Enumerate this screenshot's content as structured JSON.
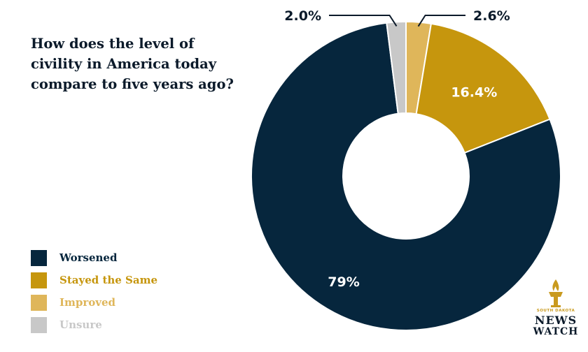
{
  "chart_data": {
    "type": "pie",
    "title_lines": [
      "How does the level of",
      "civility in America today",
      "compare to five years ago?"
    ],
    "slices": [
      {
        "label": "Improved",
        "value": 2.6,
        "display": "2.6%",
        "color": "#dfb65a"
      },
      {
        "label": "Stayed the Same",
        "value": 16.4,
        "display": "16.4%",
        "color": "#c6960d"
      },
      {
        "label": "Worsened",
        "value": 79,
        "display": "79%",
        "color": "#06263d"
      },
      {
        "label": "Unsure",
        "value": 2.0,
        "display": "2.0%",
        "color": "#c8c8c8"
      }
    ],
    "legend_order": [
      "Worsened",
      "Stayed the Same",
      "Improved",
      "Unsure"
    ],
    "legend_placement": "bottom-left",
    "donut": true
  },
  "logo": {
    "line_small": "SOUTH DAKOTA",
    "line_1": "NEWS",
    "line_2": "WATCH"
  }
}
